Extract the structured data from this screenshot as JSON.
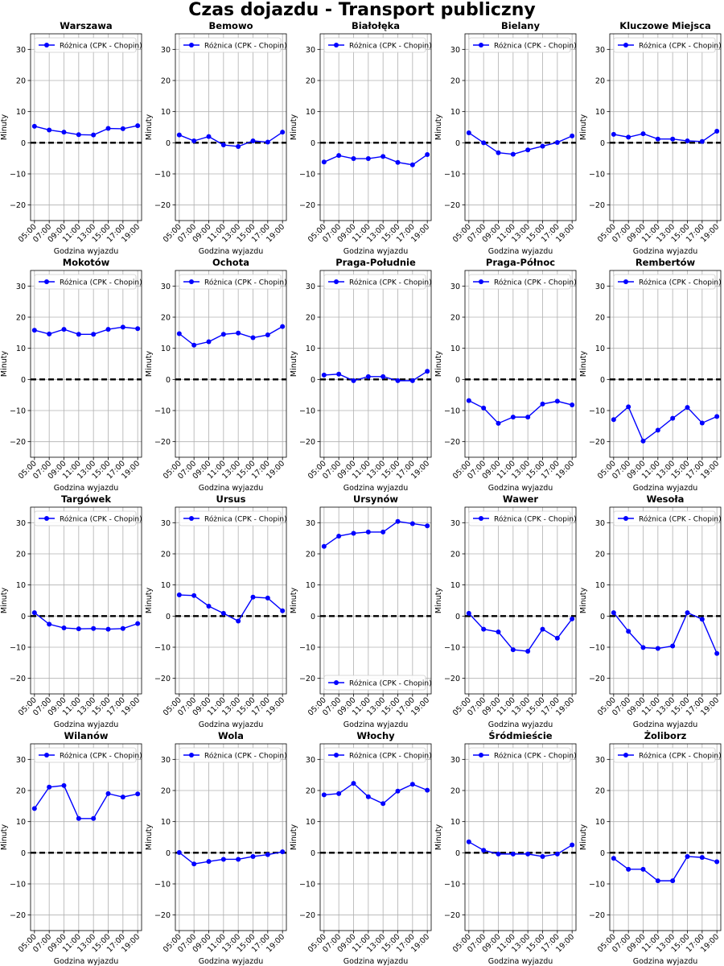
{
  "figure": {
    "title": "Czas dojazdu - Transport publiczny"
  },
  "chart_data": [
    {
      "type": "line",
      "title": "Warszawa",
      "xlabel": "Godzina wyjazdu",
      "ylabel": "Minuty",
      "categories": [
        "05:00",
        "07:00",
        "09:00",
        "11:00",
        "13:00",
        "15:00",
        "17:00",
        "19:00"
      ],
      "ylim": [
        -25,
        35
      ],
      "yticks": [
        -20,
        -10,
        0,
        10,
        20,
        30
      ],
      "grid": true,
      "legend_position": "upper left",
      "reference_line": 0,
      "series": [
        {
          "name": "Różnica (CPK - Chopin)",
          "color": "#0000ff",
          "values": [
            5.3,
            4.1,
            3.4,
            2.6,
            2.5,
            4.6,
            4.5,
            5.5
          ]
        }
      ]
    },
    {
      "type": "line",
      "title": "Bemowo",
      "xlabel": "Godzina wyjazdu",
      "ylabel": "Minuty",
      "categories": [
        "05:00",
        "07:00",
        "09:00",
        "11:00",
        "13:00",
        "15:00",
        "17:00",
        "19:00"
      ],
      "ylim": [
        -25,
        35
      ],
      "yticks": [
        -20,
        -10,
        0,
        10,
        20,
        30
      ],
      "grid": true,
      "legend_position": "upper left",
      "reference_line": 0,
      "series": [
        {
          "name": "Różnica (CPK - Chopin)",
          "color": "#0000ff",
          "values": [
            2.5,
            0.6,
            2.0,
            -0.7,
            -1.2,
            0.6,
            0.2,
            3.4
          ]
        }
      ]
    },
    {
      "type": "line",
      "title": "Białołęka",
      "xlabel": "Godzina wyjazdu",
      "ylabel": "Minuty",
      "categories": [
        "05:00",
        "07:00",
        "09:00",
        "11:00",
        "13:00",
        "15:00",
        "17:00",
        "19:00"
      ],
      "ylim": [
        -25,
        35
      ],
      "yticks": [
        -20,
        -10,
        0,
        10,
        20,
        30
      ],
      "grid": true,
      "legend_position": "upper left",
      "reference_line": 0,
      "series": [
        {
          "name": "Różnica (CPK - Chopin)",
          "color": "#0000ff",
          "values": [
            -6.2,
            -4.1,
            -5.1,
            -5.1,
            -4.4,
            -6.3,
            -7.1,
            -3.8
          ]
        }
      ]
    },
    {
      "type": "line",
      "title": "Bielany",
      "xlabel": "Godzina wyjazdu",
      "ylabel": "Minuty",
      "categories": [
        "05:00",
        "07:00",
        "09:00",
        "11:00",
        "13:00",
        "15:00",
        "17:00",
        "19:00"
      ],
      "ylim": [
        -25,
        35
      ],
      "yticks": [
        -20,
        -10,
        0,
        10,
        20,
        30
      ],
      "grid": true,
      "legend_position": "upper left",
      "reference_line": 0,
      "series": [
        {
          "name": "Różnica (CPK - Chopin)",
          "color": "#0000ff",
          "values": [
            3.2,
            0.0,
            -3.2,
            -3.7,
            -2.3,
            -1.1,
            0.1,
            2.2
          ]
        }
      ]
    },
    {
      "type": "line",
      "title": "Kluczowe Miejsca",
      "xlabel": "Godzina wyjazdu",
      "ylabel": "Minuty",
      "categories": [
        "05:00",
        "07:00",
        "09:00",
        "11:00",
        "13:00",
        "15:00",
        "17:00",
        "19:00"
      ],
      "ylim": [
        -25,
        35
      ],
      "yticks": [
        -20,
        -10,
        0,
        10,
        20,
        30
      ],
      "grid": true,
      "legend_position": "upper left",
      "reference_line": 0,
      "series": [
        {
          "name": "Różnica (CPK - Chopin)",
          "color": "#0000ff",
          "values": [
            2.7,
            1.8,
            2.9,
            1.2,
            1.2,
            0.6,
            0.4,
            3.7
          ]
        }
      ]
    },
    {
      "type": "line",
      "title": "Mokotów",
      "xlabel": "Godzina wyjazdu",
      "ylabel": "Minuty",
      "categories": [
        "05:00",
        "07:00",
        "09:00",
        "11:00",
        "13:00",
        "15:00",
        "17:00",
        "19:00"
      ],
      "ylim": [
        -25,
        35
      ],
      "yticks": [
        -20,
        -10,
        0,
        10,
        20,
        30
      ],
      "grid": true,
      "legend_position": "upper left",
      "reference_line": 0,
      "series": [
        {
          "name": "Różnica (CPK - Chopin)",
          "color": "#0000ff",
          "values": [
            15.8,
            14.6,
            16.1,
            14.5,
            14.5,
            16.1,
            16.8,
            16.3
          ]
        }
      ]
    },
    {
      "type": "line",
      "title": "Ochota",
      "xlabel": "Godzina wyjazdu",
      "ylabel": "Minuty",
      "categories": [
        "05:00",
        "07:00",
        "09:00",
        "11:00",
        "13:00",
        "15:00",
        "17:00",
        "19:00"
      ],
      "ylim": [
        -25,
        35
      ],
      "yticks": [
        -20,
        -10,
        0,
        10,
        20,
        30
      ],
      "grid": true,
      "legend_position": "upper left",
      "reference_line": 0,
      "series": [
        {
          "name": "Różnica (CPK - Chopin)",
          "color": "#0000ff",
          "values": [
            14.7,
            11.0,
            12.1,
            14.5,
            14.9,
            13.4,
            14.3,
            17.0
          ]
        }
      ]
    },
    {
      "type": "line",
      "title": "Praga-Południe",
      "xlabel": "Godzina wyjazdu",
      "ylabel": "Minuty",
      "categories": [
        "05:00",
        "07:00",
        "09:00",
        "11:00",
        "13:00",
        "15:00",
        "17:00",
        "19:00"
      ],
      "ylim": [
        -25,
        35
      ],
      "yticks": [
        -20,
        -10,
        0,
        10,
        20,
        30
      ],
      "grid": true,
      "legend_position": "upper left",
      "reference_line": 0,
      "series": [
        {
          "name": "Różnica (CPK - Chopin)",
          "color": "#0000ff",
          "values": [
            1.4,
            1.7,
            -0.4,
            0.9,
            0.9,
            -0.4,
            -0.4,
            2.6
          ]
        }
      ]
    },
    {
      "type": "line",
      "title": "Praga-Północ",
      "xlabel": "Godzina wyjazdu",
      "ylabel": "Minuty",
      "categories": [
        "05:00",
        "07:00",
        "09:00",
        "11:00",
        "13:00",
        "15:00",
        "17:00",
        "19:00"
      ],
      "ylim": [
        -25,
        35
      ],
      "yticks": [
        -20,
        -10,
        0,
        10,
        20,
        30
      ],
      "grid": true,
      "legend_position": "upper left",
      "reference_line": 0,
      "series": [
        {
          "name": "Różnica (CPK - Chopin)",
          "color": "#0000ff",
          "values": [
            -6.8,
            -9.2,
            -14.1,
            -12.1,
            -12.1,
            -7.9,
            -7.0,
            -8.2
          ]
        }
      ]
    },
    {
      "type": "line",
      "title": "Rembertów",
      "xlabel": "Godzina wyjazdu",
      "ylabel": "Minuty",
      "categories": [
        "05:00",
        "07:00",
        "09:00",
        "11:00",
        "13:00",
        "15:00",
        "17:00",
        "19:00"
      ],
      "ylim": [
        -25,
        35
      ],
      "yticks": [
        -20,
        -10,
        0,
        10,
        20,
        30
      ],
      "grid": true,
      "legend_position": "upper left",
      "reference_line": 0,
      "series": [
        {
          "name": "Różnica (CPK - Chopin)",
          "color": "#0000ff",
          "values": [
            -12.9,
            -8.8,
            -19.8,
            -16.3,
            -12.5,
            -9.0,
            -14.0,
            -11.9
          ]
        }
      ]
    },
    {
      "type": "line",
      "title": "Targówek",
      "xlabel": "Godzina wyjazdu",
      "ylabel": "Minuty",
      "categories": [
        "05:00",
        "07:00",
        "09:00",
        "11:00",
        "13:00",
        "15:00",
        "17:00",
        "19:00"
      ],
      "ylim": [
        -25,
        35
      ],
      "yticks": [
        -20,
        -10,
        0,
        10,
        20,
        30
      ],
      "grid": true,
      "legend_position": "upper left",
      "reference_line": 0,
      "series": [
        {
          "name": "Różnica (CPK - Chopin)",
          "color": "#0000ff",
          "values": [
            1.1,
            -2.6,
            -3.8,
            -4.1,
            -4.0,
            -4.2,
            -4.0,
            -2.4
          ]
        }
      ]
    },
    {
      "type": "line",
      "title": "Ursus",
      "xlabel": "Godzina wyjazdu",
      "ylabel": "Minuty",
      "categories": [
        "05:00",
        "07:00",
        "09:00",
        "11:00",
        "13:00",
        "15:00",
        "17:00",
        "19:00"
      ],
      "ylim": [
        -25,
        35
      ],
      "yticks": [
        -20,
        -10,
        0,
        10,
        20,
        30
      ],
      "grid": true,
      "legend_position": "upper left",
      "reference_line": 0,
      "series": [
        {
          "name": "Różnica (CPK - Chopin)",
          "color": "#0000ff",
          "values": [
            6.8,
            6.6,
            3.2,
            0.9,
            -1.6,
            6.1,
            5.8,
            1.7
          ]
        }
      ]
    },
    {
      "type": "line",
      "title": "Ursynów",
      "xlabel": "Godzina wyjazdu",
      "ylabel": "Minuty",
      "categories": [
        "05:00",
        "07:00",
        "09:00",
        "11:00",
        "13:00",
        "15:00",
        "17:00",
        "19:00"
      ],
      "ylim": [
        -25,
        35
      ],
      "yticks": [
        -20,
        -10,
        0,
        10,
        20,
        30
      ],
      "grid": true,
      "legend_position": "lower left",
      "reference_line": 0,
      "series": [
        {
          "name": "Różnica (CPK - Chopin)",
          "color": "#0000ff",
          "values": [
            22.4,
            25.7,
            26.6,
            27.0,
            27.0,
            30.4,
            29.7,
            29.0
          ]
        }
      ]
    },
    {
      "type": "line",
      "title": "Wawer",
      "xlabel": "Godzina wyjazdu",
      "ylabel": "Minuty",
      "categories": [
        "05:00",
        "07:00",
        "09:00",
        "11:00",
        "13:00",
        "15:00",
        "17:00",
        "19:00"
      ],
      "ylim": [
        -25,
        35
      ],
      "yticks": [
        -20,
        -10,
        0,
        10,
        20,
        30
      ],
      "grid": true,
      "legend_position": "upper left",
      "reference_line": 0,
      "series": [
        {
          "name": "Różnica (CPK - Chopin)",
          "color": "#0000ff",
          "values": [
            0.9,
            -4.2,
            -5.1,
            -10.8,
            -11.3,
            -4.2,
            -7.1,
            -0.9
          ]
        }
      ]
    },
    {
      "type": "line",
      "title": "Wesoła",
      "xlabel": "Godzina wyjazdu",
      "ylabel": "Minuty",
      "categories": [
        "05:00",
        "07:00",
        "09:00",
        "11:00",
        "13:00",
        "15:00",
        "17:00",
        "19:00"
      ],
      "ylim": [
        -25,
        35
      ],
      "yticks": [
        -20,
        -10,
        0,
        10,
        20,
        30
      ],
      "grid": true,
      "legend_position": "upper left",
      "reference_line": 0,
      "series": [
        {
          "name": "Różnica (CPK - Chopin)",
          "color": "#0000ff",
          "values": [
            1.1,
            -4.9,
            -10.1,
            -10.4,
            -9.6,
            1.1,
            -1.0,
            -12.0
          ]
        }
      ]
    },
    {
      "type": "line",
      "title": "Wilanów",
      "xlabel": "Godzina wyjazdu",
      "ylabel": "Minuty",
      "categories": [
        "05:00",
        "07:00",
        "09:00",
        "11:00",
        "13:00",
        "15:00",
        "17:00",
        "19:00"
      ],
      "ylim": [
        -25,
        35
      ],
      "yticks": [
        -20,
        -10,
        0,
        10,
        20,
        30
      ],
      "grid": true,
      "legend_position": "upper left",
      "reference_line": 0,
      "series": [
        {
          "name": "Różnica (CPK - Chopin)",
          "color": "#0000ff",
          "values": [
            14.2,
            21.1,
            21.6,
            11.0,
            11.0,
            19.0,
            17.9,
            18.9
          ]
        }
      ]
    },
    {
      "type": "line",
      "title": "Wola",
      "xlabel": "Godzina wyjazdu",
      "ylabel": "Minuty",
      "categories": [
        "05:00",
        "07:00",
        "09:00",
        "11:00",
        "13:00",
        "15:00",
        "17:00",
        "19:00"
      ],
      "ylim": [
        -25,
        35
      ],
      "yticks": [
        -20,
        -10,
        0,
        10,
        20,
        30
      ],
      "grid": true,
      "legend_position": "upper left",
      "reference_line": 0,
      "series": [
        {
          "name": "Różnica (CPK - Chopin)",
          "color": "#0000ff",
          "values": [
            0.1,
            -3.6,
            -2.8,
            -2.1,
            -2.1,
            -1.2,
            -0.6,
            0.3
          ]
        }
      ]
    },
    {
      "type": "line",
      "title": "Włochy",
      "xlabel": "Godzina wyjazdu",
      "ylabel": "Minuty",
      "categories": [
        "05:00",
        "07:00",
        "09:00",
        "11:00",
        "13:00",
        "15:00",
        "17:00",
        "19:00"
      ],
      "ylim": [
        -25,
        35
      ],
      "yticks": [
        -20,
        -10,
        0,
        10,
        20,
        30
      ],
      "grid": true,
      "legend_position": "upper left",
      "reference_line": 0,
      "series": [
        {
          "name": "Różnica (CPK - Chopin)",
          "color": "#0000ff",
          "values": [
            18.6,
            19.0,
            22.3,
            18.0,
            15.8,
            19.8,
            22.0,
            20.1
          ]
        }
      ]
    },
    {
      "type": "line",
      "title": "Śródmieście",
      "xlabel": "Godzina wyjazdu",
      "ylabel": "Minuty",
      "categories": [
        "05:00",
        "07:00",
        "09:00",
        "11:00",
        "13:00",
        "15:00",
        "17:00",
        "19:00"
      ],
      "ylim": [
        -25,
        35
      ],
      "yticks": [
        -20,
        -10,
        0,
        10,
        20,
        30
      ],
      "grid": true,
      "legend_position": "upper left",
      "reference_line": 0,
      "series": [
        {
          "name": "Różnica (CPK - Chopin)",
          "color": "#0000ff",
          "values": [
            3.5,
            0.8,
            -0.4,
            -0.4,
            -0.4,
            -1.2,
            -0.4,
            2.5
          ]
        }
      ]
    },
    {
      "type": "line",
      "title": "Żoliborz",
      "xlabel": "Godzina wyjazdu",
      "ylabel": "Minuty",
      "categories": [
        "05:00",
        "07:00",
        "09:00",
        "11:00",
        "13:00",
        "15:00",
        "17:00",
        "19:00"
      ],
      "ylim": [
        -25,
        35
      ],
      "yticks": [
        -20,
        -10,
        0,
        10,
        20,
        30
      ],
      "grid": true,
      "legend_position": "upper left",
      "reference_line": 0,
      "series": [
        {
          "name": "Różnica (CPK - Chopin)",
          "color": "#0000ff",
          "values": [
            -1.8,
            -5.3,
            -5.3,
            -9.0,
            -9.0,
            -1.2,
            -1.5,
            -2.9
          ]
        }
      ]
    }
  ]
}
